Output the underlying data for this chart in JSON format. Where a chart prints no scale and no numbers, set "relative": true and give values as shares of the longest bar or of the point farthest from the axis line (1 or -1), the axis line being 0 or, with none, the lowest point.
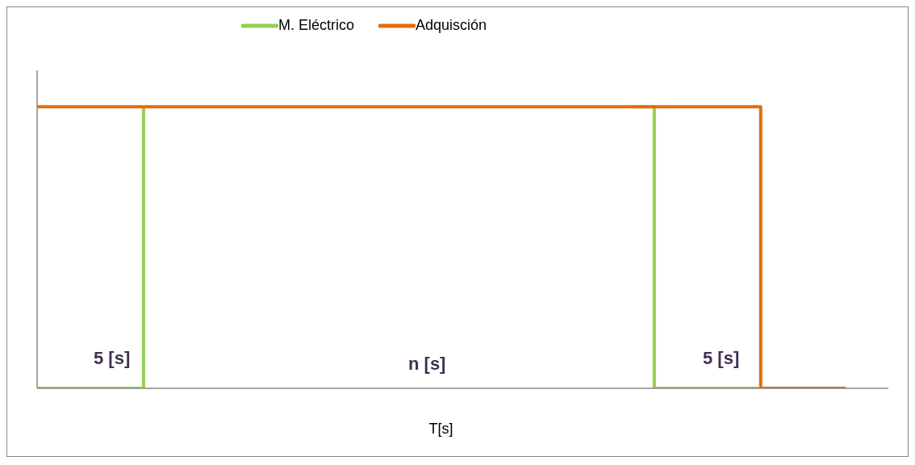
{
  "chart_data": {
    "type": "step",
    "relative": true,
    "xlabel": "T[s]",
    "legend": "top",
    "marker": "none",
    "line_style": "solid",
    "categories": [
      null,
      null,
      null,
      null,
      null,
      null,
      null,
      null,
      null,
      null,
      null,
      null,
      null,
      null,
      null,
      null,
      null,
      null,
      null,
      null,
      null,
      null,
      null,
      null,
      null,
      null,
      null,
      null,
      null,
      null,
      null,
      null,
      null,
      null,
      null,
      null,
      null,
      null,
      null,
      null,
      null
    ],
    "series": [
      {
        "name": "M. Eléctrico",
        "color": "#92d050",
        "values": [
          0,
          0,
          0,
          0,
          0,
          1,
          null,
          null,
          null,
          null,
          null,
          null,
          null,
          null,
          null,
          null,
          null,
          null,
          null,
          null,
          null,
          null,
          null,
          null,
          null,
          null,
          null,
          null,
          1,
          0,
          0,
          0,
          0,
          0,
          0,
          null,
          null,
          null,
          null,
          null,
          null
        ]
      },
      {
        "name": "Adquisción",
        "color": "#e46c0a",
        "values": [
          1,
          1,
          1,
          1,
          1,
          1,
          1,
          1,
          1,
          1,
          1,
          1,
          1,
          1,
          1,
          1,
          1,
          1,
          1,
          1,
          1,
          1,
          1,
          1,
          1,
          1,
          1,
          1,
          1,
          1,
          1,
          1,
          1,
          1,
          0,
          0,
          0,
          0,
          0,
          null,
          null
        ]
      }
    ],
    "annotations": [
      "5 [s]",
      "n [s]",
      "5 [s]"
    ]
  }
}
